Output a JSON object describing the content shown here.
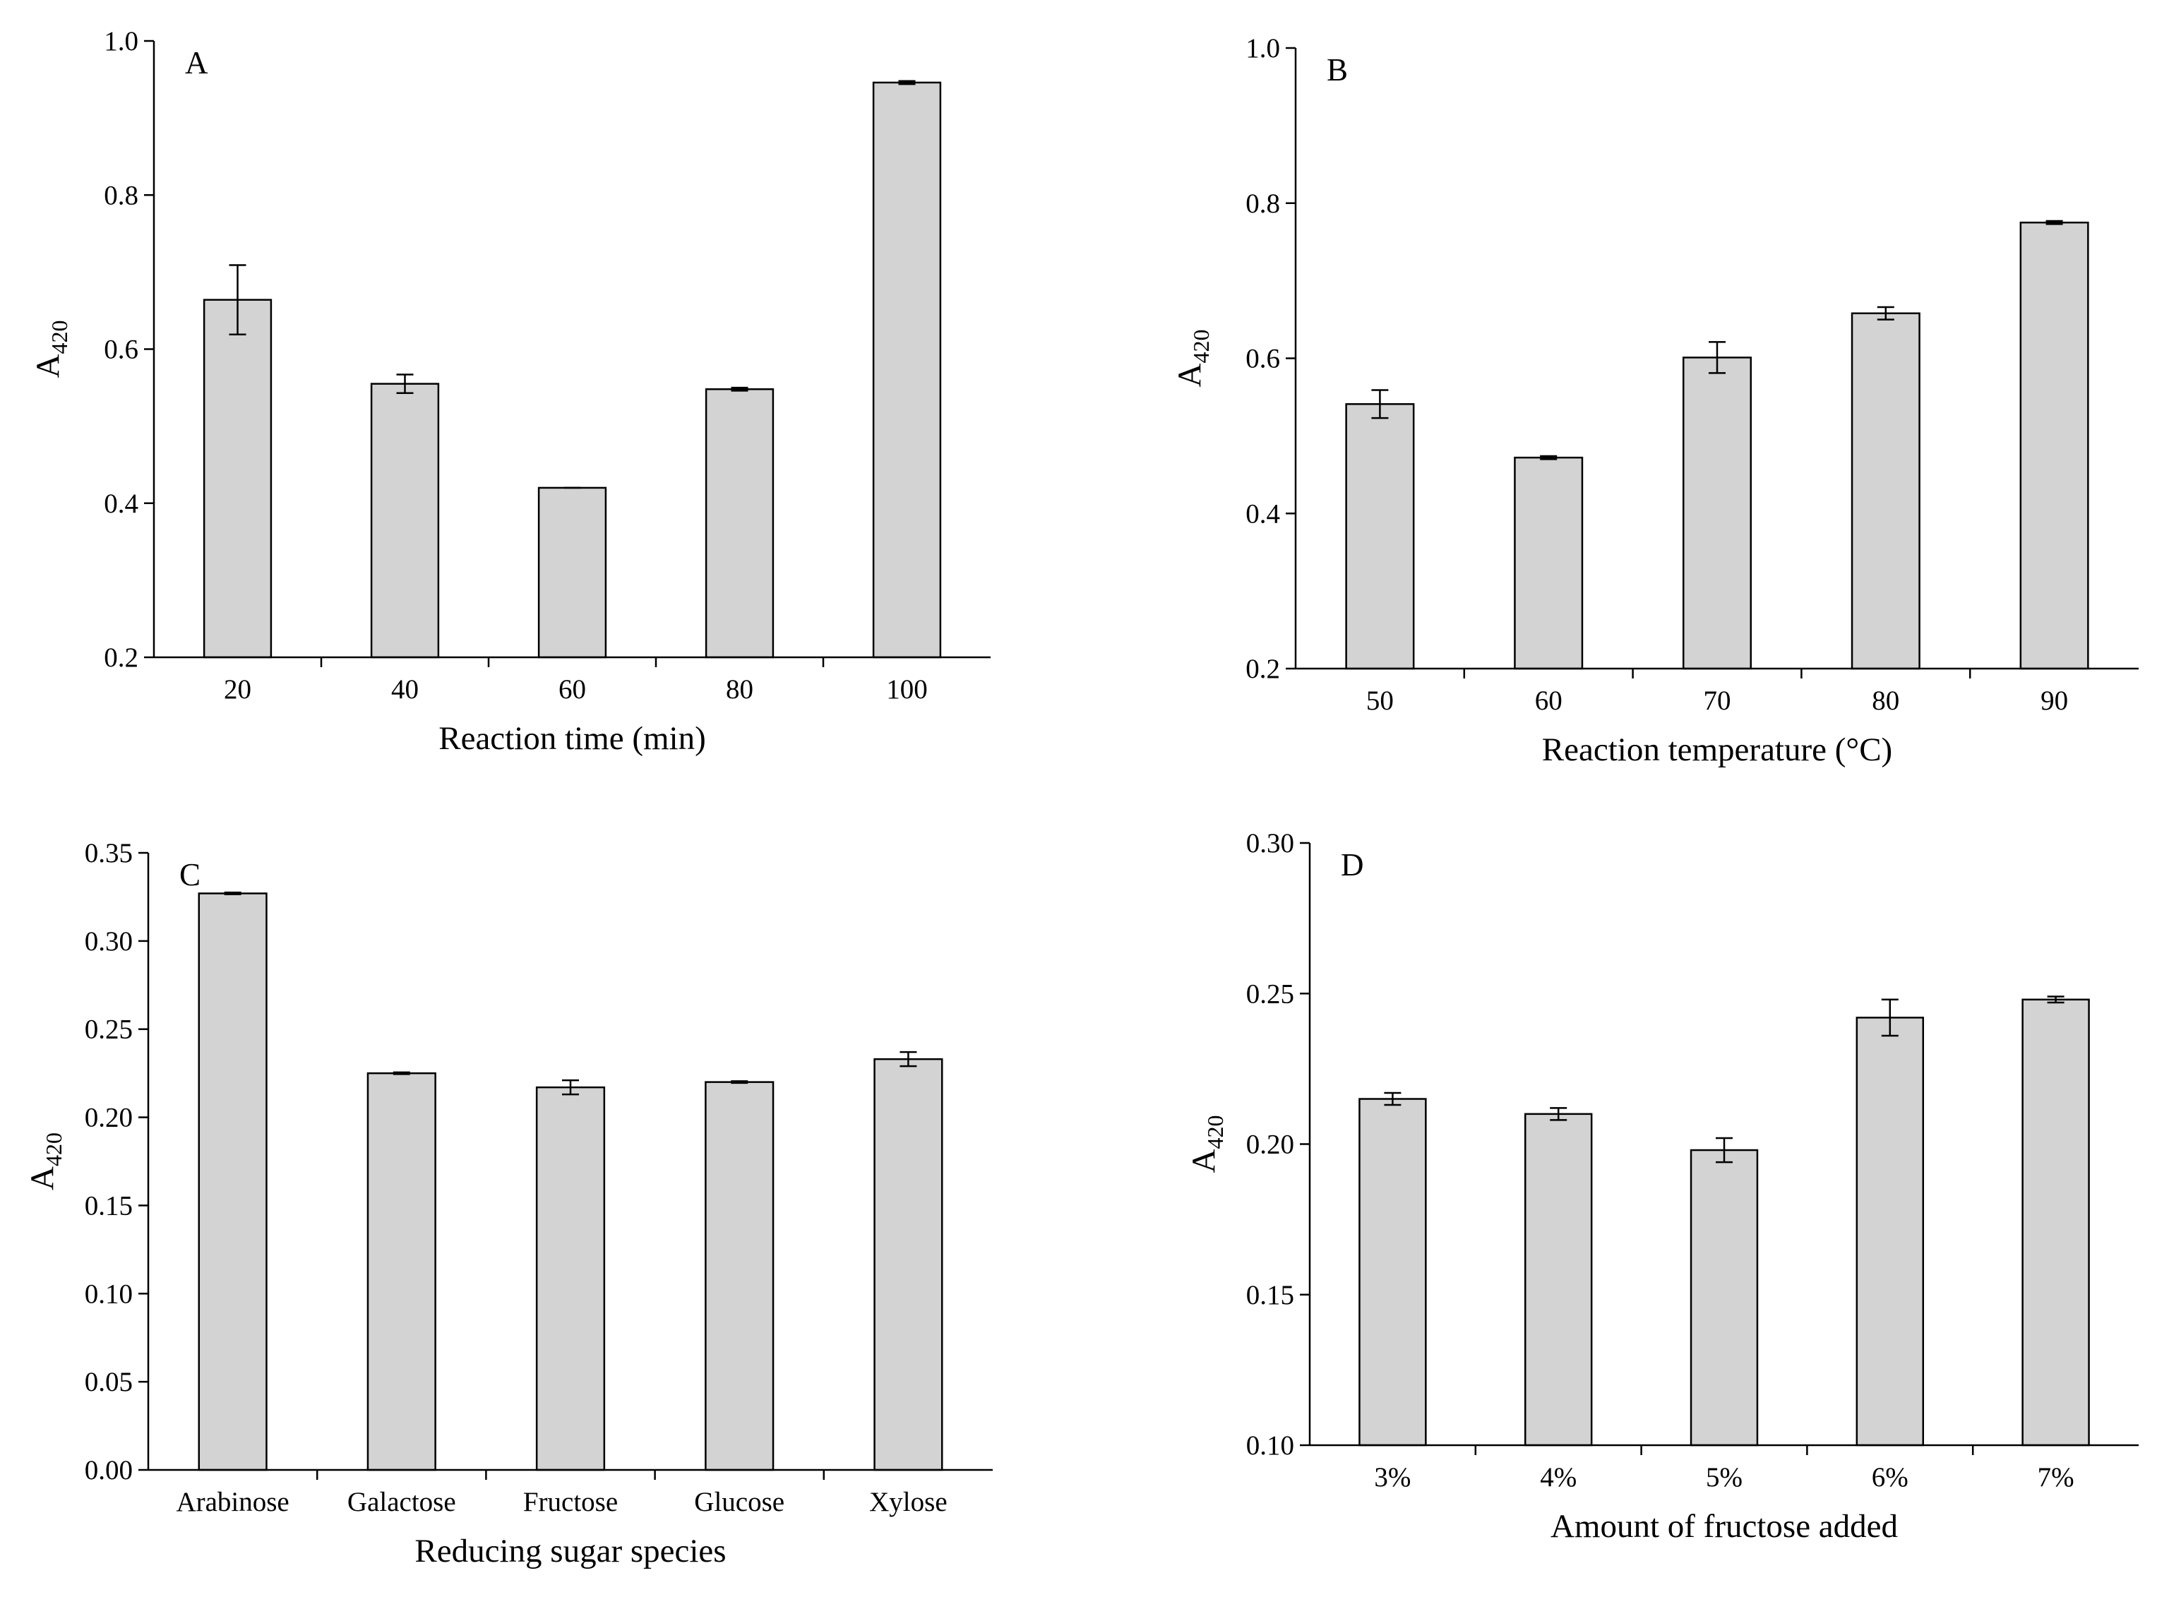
{
  "chart_data": [
    {
      "type": "bar",
      "panel_label": "A",
      "xlabel": "Reaction time (min)",
      "ylabel": "A",
      "ylabel_sub": "420",
      "categories": [
        "20",
        "40",
        "60",
        "80",
        "100"
      ],
      "series": [
        {
          "color": "#d3d3d3",
          "values": [
            0.664,
            0.555,
            0.42,
            0.548,
            0.946
          ],
          "errors": [
            0.045,
            0.012,
            0,
            0.002,
            0.002
          ]
        }
      ],
      "ylim": [
        0.2,
        1.0
      ],
      "yticks": [
        0.2,
        0.4,
        0.6,
        0.8,
        {
          "value": 1,
          "label": "1.0"
        }
      ]
    },
    {
      "type": "bar",
      "panel_label": "B",
      "xlabel": "Reaction temperature (°C)",
      "ylabel": "A",
      "ylabel_sub": "420",
      "categories": [
        "50",
        "60",
        "70",
        "80",
        "90"
      ],
      "series": [
        {
          "color": "#d3d3d3",
          "values": [
            0.541,
            0.472,
            0.601,
            0.658,
            0.775
          ],
          "errors": [
            0.018,
            0.002,
            0.02,
            0.008,
            0.002
          ]
        }
      ],
      "ylim": [
        0.2,
        1.0
      ],
      "yticks": [
        0.2,
        0.4,
        0.6,
        0.8,
        {
          "value": 1,
          "label": "1.0"
        }
      ]
    },
    {
      "type": "bar",
      "panel_label": "C",
      "xlabel": "Reducing sugar species",
      "ylabel": "A",
      "ylabel_sub": "420",
      "categories": [
        "Arabinose",
        "Galactose",
        "Fructose",
        "Glucose",
        "Xylose"
      ],
      "series": [
        {
          "color": "#d3d3d3",
          "values": [
            0.327,
            0.225,
            0.217,
            0.22,
            0.233
          ],
          "errors": [
            0.0005,
            0.0005,
            0.004,
            0.0005,
            0.004
          ]
        }
      ],
      "ylim": [
        0,
        0.35
      ],
      "yticks": [
        {
          "value": 0,
          "label": "0.00"
        },
        0.05,
        {
          "value": 0.1,
          "label": "0.10"
        },
        0.15,
        {
          "value": 0.2,
          "label": "0.20"
        },
        0.25,
        {
          "value": 0.3,
          "label": "0.30"
        },
        0.35
      ]
    },
    {
      "type": "bar",
      "panel_label": "D",
      "xlabel": "Amount of fructose added",
      "ylabel": "A",
      "ylabel_sub": "420",
      "categories": [
        "3%",
        "4%",
        "5%",
        "6%",
        "7%"
      ],
      "series": [
        {
          "color": "#d3d3d3",
          "values": [
            0.215,
            0.21,
            0.198,
            0.242,
            0.248
          ],
          "errors": [
            0.002,
            0.002,
            0.004,
            0.006,
            0.001
          ]
        }
      ],
      "ylim": [
        0.1,
        0.3
      ],
      "yticks": [
        {
          "value": 0.1,
          "label": "0.10"
        },
        0.15,
        {
          "value": 0.2,
          "label": "0.20"
        },
        0.25,
        {
          "value": 0.3,
          "label": "0.30"
        }
      ]
    }
  ]
}
